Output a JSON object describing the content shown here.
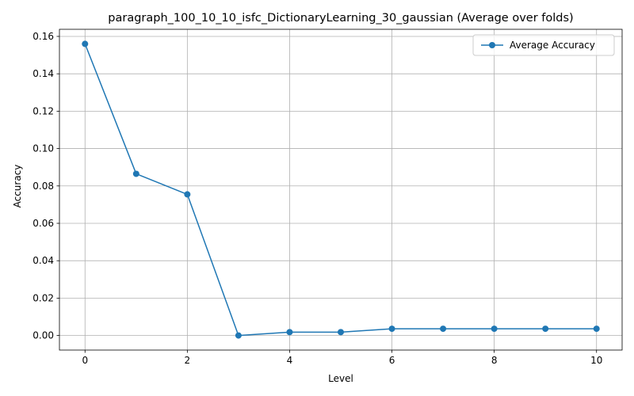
{
  "chart_data": {
    "type": "line",
    "title": "paragraph_100_10_10_isfc_DictionaryLearning_30_gaussian (Average over folds)",
    "xlabel": "Level",
    "ylabel": "Accuracy",
    "xlim": [
      -0.5,
      10.5
    ],
    "ylim": [
      -0.0078,
      0.1638
    ],
    "x_ticks": [
      0,
      2,
      4,
      6,
      8,
      10
    ],
    "x_tick_labels": [
      "0",
      "2",
      "4",
      "6",
      "8",
      "10"
    ],
    "y_ticks": [
      0.0,
      0.02,
      0.04,
      0.06,
      0.08,
      0.1,
      0.12,
      0.14,
      0.16
    ],
    "y_tick_labels": [
      "0.00",
      "0.02",
      "0.04",
      "0.06",
      "0.08",
      "0.10",
      "0.12",
      "0.14",
      "0.16"
    ],
    "grid": true,
    "legend_position": "upper right",
    "series": [
      {
        "name": "Average Accuracy",
        "color": "#1f77b4",
        "marker": "circle",
        "x": [
          0,
          1,
          2,
          3,
          4,
          5,
          6,
          7,
          8,
          9,
          10
        ],
        "y": [
          0.156,
          0.0865,
          0.0755,
          0.0,
          0.0018,
          0.0018,
          0.0036,
          0.0036,
          0.0036,
          0.0036,
          0.0036
        ]
      }
    ]
  }
}
